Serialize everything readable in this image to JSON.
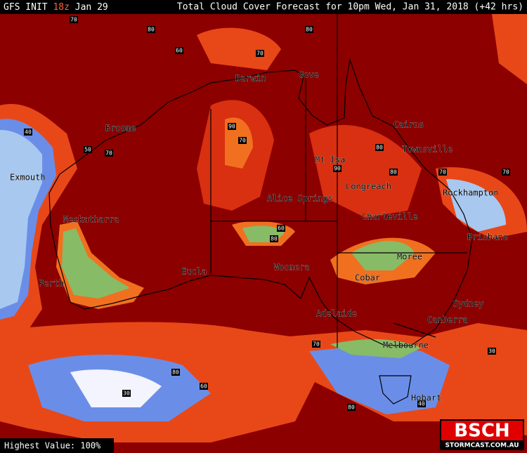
{
  "header": {
    "model": "GFS INIT",
    "run": "18z",
    "date": "Jan 29",
    "title": "Total Cloud Cover Forecast for 10pm Wed, Jan 31, 2018 (+42 hrs)"
  },
  "cities": [
    "Darwin",
    "Gove",
    "Broome",
    "Cairns",
    "Townsville",
    "Exmouth",
    "Mt Isa",
    "Longreach",
    "Rockhampton",
    "Alice Springs",
    "Meekatharra",
    "Charleville",
    "Brisbane",
    "Moree",
    "Eucla",
    "Woomera",
    "Perth",
    "Cobar",
    "Sydney",
    "Adelaide",
    "Canberra",
    "Melbourne",
    "Hobart"
  ],
  "contour_labels": [
    70,
    80,
    60,
    70,
    80,
    90,
    70,
    80,
    90,
    80,
    70,
    60,
    80,
    40,
    50,
    70,
    80,
    30,
    60,
    70,
    80,
    40,
    30,
    70
  ],
  "footer": "Highest Value: 100%",
  "logo": {
    "name": "BSCH",
    "site": "STORMCAST.COM.AU"
  }
}
